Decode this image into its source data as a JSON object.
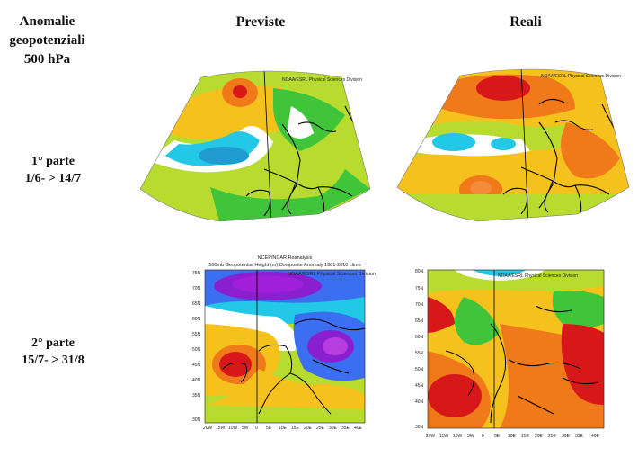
{
  "header": {
    "row_title_lines": [
      "Anomalie",
      "geopotenziali",
      "500 hPa"
    ],
    "col_forecast": "Previste",
    "col_actual": "Reali"
  },
  "rows": [
    {
      "label_line1": "1° parte",
      "label_line2": "1/6- > 14/7"
    },
    {
      "label_line1": "2° parte",
      "label_line2": "15/7- > 31/8"
    }
  ],
  "maps": {
    "psd_credit": "NOAA/ESRL Physical Sciences Division",
    "psd_credit_bottom": "NOAA/ESRL Physical Sciences Division",
    "ncep_title": "NCEP/NCAR Reanalysis",
    "ncep_subtitle": "500mb Geopotential Height (m) Composite Anomaly 1981-2010 climo",
    "lat_ticks": [
      "80N",
      "75N",
      "70N",
      "65N",
      "60N",
      "55N",
      "50N",
      "45N",
      "40N",
      "35N",
      "30N"
    ],
    "lon_ticks": [
      "20W",
      "15W",
      "10W",
      "5W",
      "0",
      "5E",
      "10E",
      "15E",
      "20E",
      "25E",
      "30E",
      "35E",
      "40E"
    ]
  },
  "colors": {
    "strong_positive": "#d81818",
    "positive": "#f07a1a",
    "weak_positive": "#f5c21d",
    "near_zero": "#b7dc2f",
    "slight": "#3fc43a",
    "neutral": "#ffffff",
    "negative": "#22c8e6",
    "strong_negative": "#8a1fd0",
    "coast": "#000000"
  }
}
